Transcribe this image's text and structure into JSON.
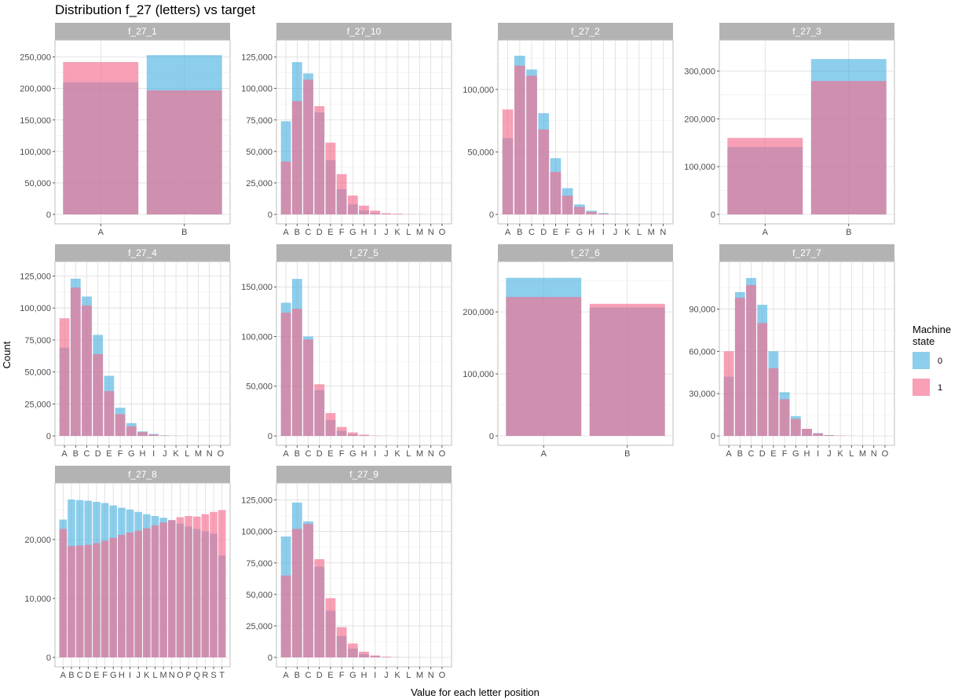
{
  "chart_data": {
    "type": "bar",
    "title": "Distribution f_27 (letters) vs target",
    "xlabel": "Value for each letter position",
    "ylabel": "Count",
    "grid": true,
    "legend": {
      "title_lines": [
        "Machine",
        "state"
      ],
      "placement": "right",
      "entries": [
        {
          "label": "0",
          "color": "#4fb3e0"
        },
        {
          "label": "1",
          "color": "#f26d8f"
        }
      ]
    },
    "series_names": [
      "0",
      "1"
    ],
    "colors": {
      "0": "#4fb3e0",
      "1": "#f26d8f",
      "overlap": "#9b4d84"
    },
    "panels": [
      {
        "name": "f_27_1",
        "categories": [
          "A",
          "B"
        ],
        "series": [
          {
            "name": "0",
            "values": [
              210000,
              253000
            ]
          },
          {
            "name": "1",
            "values": [
              242000,
              197000
            ]
          }
        ],
        "ylim": [
          0,
          262000
        ],
        "yticks": [
          0,
          50000,
          100000,
          150000,
          200000,
          250000
        ],
        "ytick_labels": [
          "0",
          "50,000",
          "100,000",
          "150,000",
          "200,000",
          "250,000"
        ]
      },
      {
        "name": "f_27_10",
        "categories": [
          "A",
          "B",
          "C",
          "D",
          "E",
          "F",
          "G",
          "H",
          "I",
          "J",
          "K",
          "L",
          "M",
          "N",
          "O"
        ],
        "series": [
          {
            "name": "0",
            "values": [
              74000,
              121000,
              112000,
              81000,
              43000,
              20000,
              8000,
              3000,
              1000,
              300,
              100,
              30,
              10,
              0,
              0
            ]
          },
          {
            "name": "1",
            "values": [
              42000,
              90000,
              107000,
              86000,
              57000,
              32000,
              15000,
              7000,
              3000,
              900,
              600,
              200,
              100,
              0,
              0
            ]
          }
        ],
        "ylim": [
          0,
          131000
        ],
        "yticks": [
          0,
          25000,
          50000,
          75000,
          100000,
          125000
        ],
        "ytick_labels": [
          "0",
          "25,000",
          "50,000",
          "75,000",
          "100,000",
          "125,000"
        ]
      },
      {
        "name": "f_27_2",
        "categories": [
          "A",
          "B",
          "C",
          "D",
          "E",
          "F",
          "G",
          "H",
          "I",
          "J",
          "K",
          "L",
          "M",
          "N"
        ],
        "series": [
          {
            "name": "0",
            "values": [
              61000,
              127000,
              116000,
              81000,
              45000,
              21000,
              8000,
              3000,
              1000,
              300,
              100,
              30,
              10,
              0
            ]
          },
          {
            "name": "1",
            "values": [
              84000,
              119000,
              111000,
              68000,
              34000,
              15000,
              6000,
              2000,
              600,
              200,
              100,
              30,
              10,
              0
            ]
          }
        ],
        "ylim": [
          0,
          132000
        ],
        "yticks": [
          0,
          50000,
          100000
        ],
        "ytick_labels": [
          "0",
          "50,000",
          "100,000"
        ]
      },
      {
        "name": "f_27_3",
        "categories": [
          "A",
          "B"
        ],
        "series": [
          {
            "name": "0",
            "values": [
              141000,
              325000
            ]
          },
          {
            "name": "1",
            "values": [
              160000,
              279000
            ]
          }
        ],
        "ylim": [
          0,
          345000
        ],
        "yticks": [
          0,
          100000,
          200000,
          300000
        ],
        "ytick_labels": [
          "0",
          "100,000",
          "200,000",
          "300,000"
        ]
      },
      {
        "name": "f_27_4",
        "categories": [
          "A",
          "B",
          "C",
          "D",
          "E",
          "F",
          "G",
          "H",
          "I",
          "J",
          "K",
          "L",
          "M",
          "N",
          "O"
        ],
        "series": [
          {
            "name": "0",
            "values": [
              69000,
              123000,
              109000,
              79000,
              47000,
              22000,
              10000,
              3500,
              1500,
              400,
              100,
              30,
              10,
              0,
              0
            ]
          },
          {
            "name": "1",
            "values": [
              92000,
              116000,
              102000,
              64000,
              35000,
              17000,
              7500,
              3000,
              1000,
              300,
              100,
              30,
              10,
              0,
              0
            ]
          }
        ],
        "ylim": [
          0,
          129000
        ],
        "yticks": [
          0,
          25000,
          50000,
          75000,
          100000,
          125000
        ],
        "ytick_labels": [
          "0",
          "25,000",
          "50,000",
          "75,000",
          "100,000",
          "125,000"
        ]
      },
      {
        "name": "f_27_5",
        "categories": [
          "A",
          "B",
          "C",
          "D",
          "E",
          "F",
          "G",
          "H",
          "I",
          "J",
          "K",
          "L",
          "M",
          "N",
          "O"
        ],
        "series": [
          {
            "name": "0",
            "values": [
              134000,
              158000,
              100000,
              46000,
              16000,
              5000,
              1500,
              500,
              100,
              30,
              10,
              0,
              0,
              0,
              0
            ]
          },
          {
            "name": "1",
            "values": [
              124000,
              128000,
              97000,
              52000,
              23000,
              9000,
              3500,
              1200,
              300,
              100,
              30,
              10,
              0,
              0,
              0
            ]
          }
        ],
        "ylim": [
          0,
          166000
        ],
        "yticks": [
          0,
          50000,
          100000,
          150000
        ],
        "ytick_labels": [
          "0",
          "50,000",
          "100,000",
          "150,000"
        ]
      },
      {
        "name": "f_27_6",
        "categories": [
          "A",
          "B"
        ],
        "series": [
          {
            "name": "0",
            "values": [
              255000,
              207000
            ]
          },
          {
            "name": "1",
            "values": [
              224000,
              213000
            ]
          }
        ],
        "ylim": [
          0,
          266000
        ],
        "yticks": [
          0,
          100000,
          200000
        ],
        "ytick_labels": [
          "0",
          "100,000",
          "200,000"
        ]
      },
      {
        "name": "f_27_7",
        "categories": [
          "A",
          "B",
          "C",
          "D",
          "E",
          "F",
          "G",
          "H",
          "I",
          "J",
          "K",
          "L",
          "M",
          "N",
          "O"
        ],
        "series": [
          {
            "name": "0",
            "values": [
              42000,
              102000,
              112000,
              93000,
              60000,
              31000,
              14000,
              5000,
              2000,
              600,
              200,
              50,
              10,
              0,
              0
            ]
          },
          {
            "name": "1",
            "values": [
              60000,
              98000,
              107000,
              80000,
              48000,
              26000,
              12000,
              5000,
              1800,
              500,
              200,
              50,
              10,
              0,
              0
            ]
          }
        ],
        "ylim": [
          0,
          117000
        ],
        "yticks": [
          0,
          30000,
          60000,
          90000
        ],
        "ytick_labels": [
          "0",
          "30,000",
          "60,000",
          "90,000"
        ]
      },
      {
        "name": "f_27_8",
        "categories": [
          "A",
          "B",
          "C",
          "D",
          "E",
          "F",
          "G",
          "H",
          "I",
          "J",
          "K",
          "L",
          "M",
          "N",
          "O",
          "P",
          "Q",
          "R",
          "S",
          "T"
        ],
        "series": [
          {
            "name": "0",
            "values": [
              23400,
              26800,
              26700,
              26600,
              26400,
              26200,
              25800,
              25400,
              25100,
              24700,
              24300,
              24000,
              23700,
              23300,
              22700,
              22200,
              21800,
              21400,
              21000,
              17300
            ]
          },
          {
            "name": "1",
            "values": [
              21800,
              18900,
              19000,
              19100,
              19400,
              19800,
              20300,
              20800,
              21200,
              21500,
              21900,
              22400,
              22900,
              23300,
              23800,
              24000,
              23900,
              24300,
              24700,
              25000
            ]
          }
        ],
        "ylim": [
          0,
          28000
        ],
        "yticks": [
          0,
          10000,
          20000
        ],
        "ytick_labels": [
          "0",
          "10,000",
          "20,000"
        ]
      },
      {
        "name": "f_27_9",
        "categories": [
          "A",
          "B",
          "C",
          "D",
          "E",
          "F",
          "G",
          "H",
          "I",
          "J",
          "K",
          "L",
          "M",
          "N",
          "O"
        ],
        "series": [
          {
            "name": "0",
            "values": [
              96000,
              123000,
              108000,
              72000,
              37000,
              17000,
              7000,
              2500,
              1000,
              300,
              100,
              30,
              10,
              0,
              0
            ]
          },
          {
            "name": "1",
            "values": [
              65000,
              102000,
              106000,
              78000,
              47000,
              24000,
              11000,
              4500,
              1500,
              500,
              100,
              30,
              10,
              0,
              0
            ]
          }
        ],
        "ylim": [
          0,
          131000
        ],
        "yticks": [
          0,
          25000,
          50000,
          75000,
          100000,
          125000
        ],
        "ytick_labels": [
          "0",
          "25,000",
          "50,000",
          "75,000",
          "100,000",
          "125,000"
        ]
      }
    ]
  }
}
